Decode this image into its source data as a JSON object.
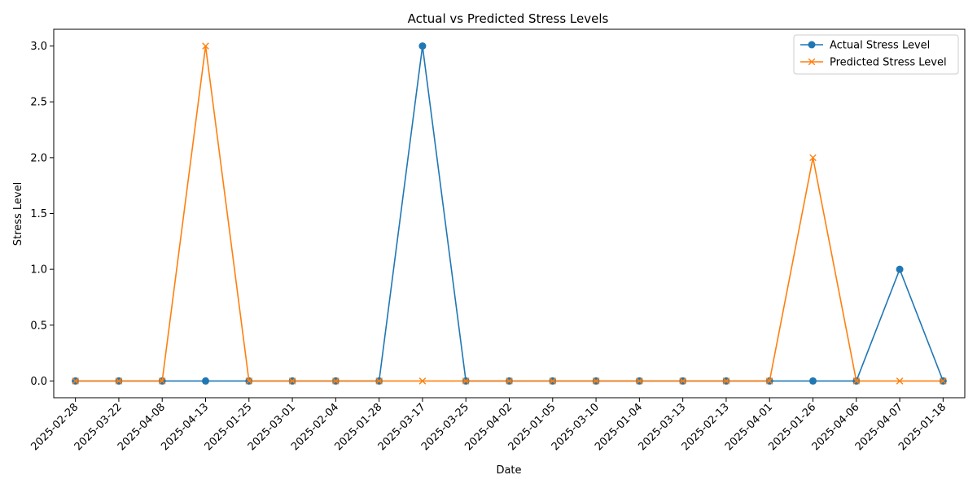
{
  "chart_data": {
    "type": "line",
    "title": "Actual vs Predicted Stress Levels",
    "xlabel": "Date",
    "ylabel": "Stress Level",
    "categories": [
      "2025-02-28",
      "2025-03-22",
      "2025-04-08",
      "2025-04-13",
      "2025-01-25",
      "2025-03-01",
      "2025-02-04",
      "2025-01-28",
      "2025-03-17",
      "2025-03-25",
      "2025-04-02",
      "2025-01-05",
      "2025-03-10",
      "2025-01-04",
      "2025-03-13",
      "2025-02-13",
      "2025-04-01",
      "2025-01-26",
      "2025-04-06",
      "2025-04-07",
      "2025-01-18"
    ],
    "ylim": [
      -0.15,
      3.15
    ],
    "yticks": [
      "0.0",
      "0.5",
      "1.0",
      "1.5",
      "2.0",
      "2.5",
      "3.0"
    ],
    "grid": false,
    "legend_position": "upper-right",
    "series": [
      {
        "name": "Actual Stress Level",
        "color": "#1f77b4",
        "marker": "circle",
        "values": [
          0,
          0,
          0,
          0,
          0,
          0,
          0,
          0,
          3,
          0,
          0,
          0,
          0,
          0,
          0,
          0,
          0,
          0,
          0,
          1,
          0
        ]
      },
      {
        "name": "Predicted Stress Level",
        "color": "#ff7f0e",
        "marker": "x",
        "values": [
          0,
          0,
          0,
          3,
          0,
          0,
          0,
          0,
          0,
          0,
          0,
          0,
          0,
          0,
          0,
          0,
          0,
          2,
          0,
          0,
          0
        ]
      }
    ]
  }
}
